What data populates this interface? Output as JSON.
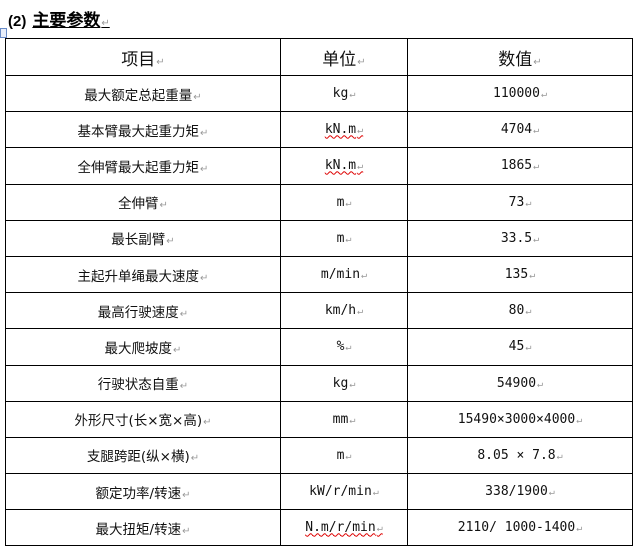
{
  "heading": {
    "number": "(2)",
    "title": "主要参数"
  },
  "table": {
    "headers": [
      "项目",
      "单位",
      "数值"
    ],
    "rows": [
      [
        "最大额定总起重量",
        "kg",
        "110000"
      ],
      [
        "基本臂最大起重力矩",
        "kN.m",
        "4704"
      ],
      [
        "全伸臂最大起重力矩",
        "kN.m",
        "1865"
      ],
      [
        "全伸臂",
        "m",
        "73"
      ],
      [
        "最长副臂",
        "m",
        "33.5"
      ],
      [
        "主起升单绳最大速度",
        "m/min",
        "135"
      ],
      [
        "最高行驶速度",
        "km/h",
        "80"
      ],
      [
        "最大爬坡度",
        "%",
        "45"
      ],
      [
        "行驶状态自重",
        "kg",
        "54900"
      ],
      [
        "外形尺寸(长×宽×高)",
        "mm",
        "15490×3000×4000"
      ],
      [
        "支腿跨距(纵×横)",
        "m",
        "8.05 × 7.8"
      ],
      [
        "额定功率/转速",
        "kW/r/min",
        "338/1900"
      ],
      [
        "最大扭矩/转速",
        "N.m/r/min",
        "2110/ 1000-1400"
      ]
    ]
  }
}
